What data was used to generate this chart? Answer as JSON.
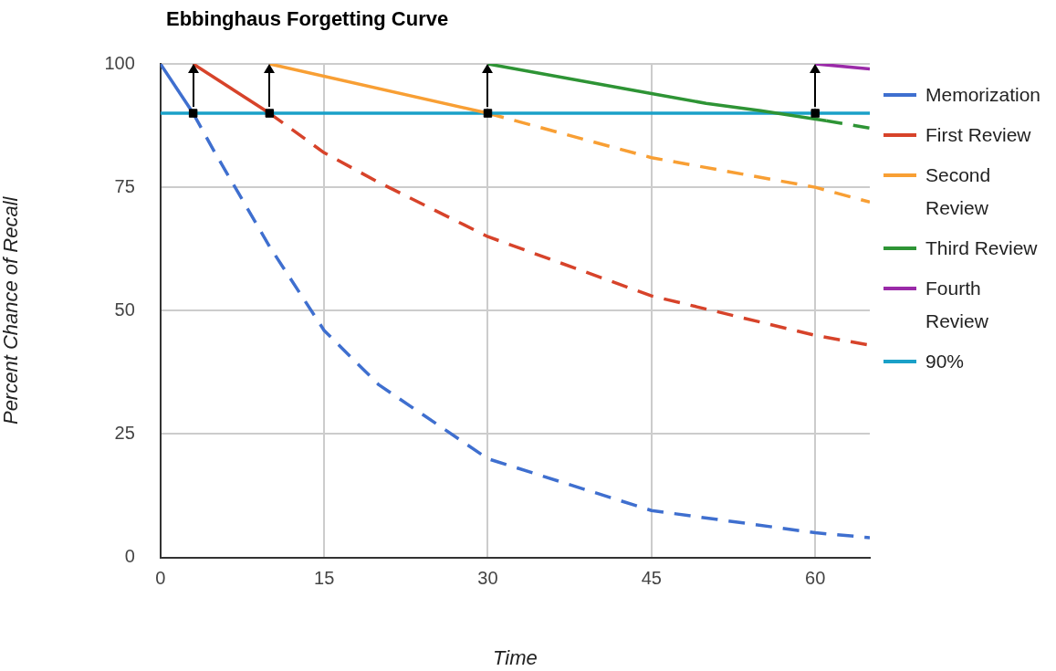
{
  "chart_data": {
    "type": "line",
    "title": "Ebbinghaus Forgetting Curve",
    "xlabel": "Time",
    "ylabel": "Percent Chance of Recall",
    "xlim": [
      0,
      65
    ],
    "xticks": [
      0,
      15,
      30,
      45,
      60
    ],
    "ylim": [
      0,
      100
    ],
    "yticks": [
      0,
      25,
      50,
      75,
      100
    ],
    "grid": true,
    "legend": "right",
    "marker": "none",
    "series": [
      {
        "name": "Memorization",
        "color": "#3f6fcf",
        "line_style": "solid",
        "x": [
          0,
          3
        ],
        "values": [
          100,
          90
        ]
      },
      {
        "name": "First Review",
        "color": "#d7432a",
        "line_style": "solid",
        "x": [
          3,
          10
        ],
        "values": [
          100,
          90
        ]
      },
      {
        "name": "Second Review",
        "color": "#f89f34",
        "line_style": "solid",
        "x": [
          10,
          30
        ],
        "values": [
          100,
          90
        ]
      },
      {
        "name": "Third Review",
        "color": "#2e9435",
        "line_style": "solid",
        "x": [
          30,
          45,
          50,
          55,
          61
        ],
        "values": [
          100,
          94,
          92,
          90.5,
          88.5
        ]
      },
      {
        "name": "Fourth Review",
        "color": "#9a2aa8",
        "line_style": "solid",
        "x": [
          60,
          65
        ],
        "values": [
          100,
          99
        ]
      },
      {
        "name": "90%",
        "color": "#1aa0c8",
        "line_style": "solid",
        "x": [
          0,
          65
        ],
        "values": [
          90,
          90
        ]
      },
      {
        "color": "#3f6fcf",
        "line_style": "dashed",
        "x": [
          3,
          5,
          10,
          15,
          20,
          30,
          45,
          60,
          65
        ],
        "values": [
          90,
          82,
          63,
          46,
          35,
          20,
          9.5,
          5,
          4
        ]
      },
      {
        "color": "#d7432a",
        "line_style": "dashed",
        "x": [
          10,
          15,
          20,
          30,
          45,
          60,
          65
        ],
        "values": [
          90,
          82,
          76,
          65,
          53,
          45,
          43
        ]
      },
      {
        "color": "#f89f34",
        "line_style": "dashed",
        "x": [
          30,
          45,
          60,
          65
        ],
        "values": [
          90,
          81,
          75,
          72
        ]
      },
      {
        "color": "#2e9435",
        "line_style": "dashed",
        "x": [
          61,
          65
        ],
        "values": [
          88.5,
          87
        ]
      },
      {
        "type": "scatter",
        "marker": "square",
        "color": "#000000",
        "x": [
          3,
          10,
          30,
          60
        ],
        "values": [
          90,
          90,
          90,
          90
        ]
      }
    ]
  }
}
